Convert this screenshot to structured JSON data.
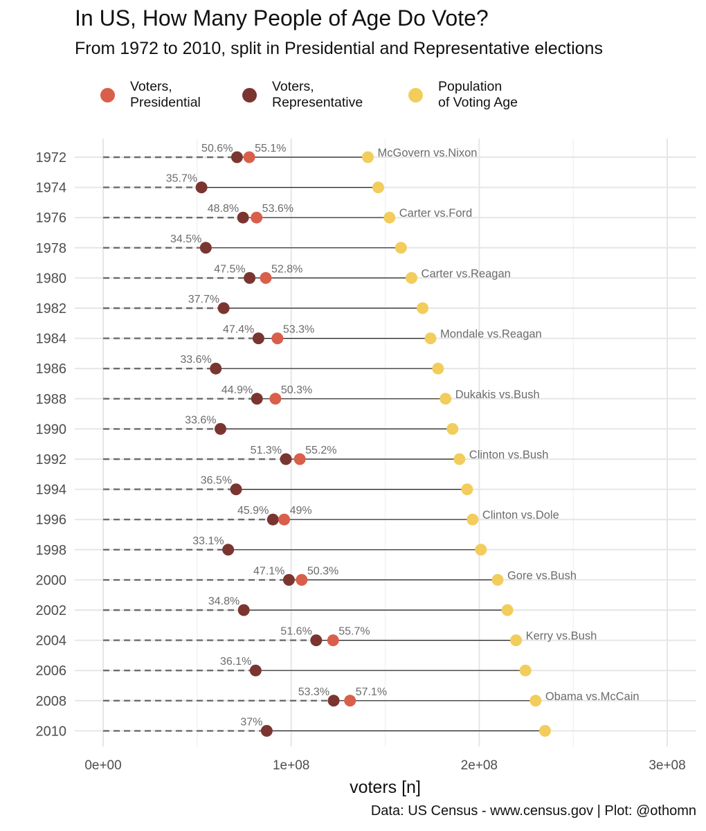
{
  "title": "In US, How Many People of Age Do Vote?",
  "subtitle": "From 1972 to 2010, split in Presidential and Representative elections",
  "caption": "Data: US Census - www.census.gov | Plot: @othomn",
  "legend": [
    {
      "line1": "Voters,",
      "line2": "Presidential",
      "color": "#d95f4b"
    },
    {
      "line1": "Voters,",
      "line2": "Representative",
      "color": "#7b3530"
    },
    {
      "line1": "Population",
      "line2": "of Voting Age",
      "color": "#f2cd5c"
    }
  ],
  "chart_data": {
    "type": "dot-dumbbell",
    "xlabel": "voters [n]",
    "ylabel": "",
    "xlim": [
      0,
      300000000
    ],
    "xticks": [
      {
        "value": 0,
        "label": "0e+00"
      },
      {
        "value": 100000000,
        "label": "1e+08"
      },
      {
        "value": 200000000,
        "label": "2e+08"
      },
      {
        "value": 300000000,
        "label": "3e+08"
      }
    ],
    "grid": true,
    "colors": {
      "presidential": "#d95f4b",
      "representative": "#7b3530",
      "population": "#f2cd5c"
    },
    "rows": [
      {
        "year": "1972",
        "pop": 140800000,
        "rep": 71200000,
        "rep_pct": "50.6%",
        "pres": 77700000,
        "pres_pct": "55.1%",
        "election": "McGovern vs.Nixon"
      },
      {
        "year": "1974",
        "pop": 146300000,
        "rep": 52300000,
        "rep_pct": "35.7%",
        "pres": null,
        "pres_pct": "",
        "election": ""
      },
      {
        "year": "1976",
        "pop": 152300000,
        "rep": 74400000,
        "rep_pct": "48.8%",
        "pres": 81600000,
        "pres_pct": "53.6%",
        "election": "Carter vs.Ford"
      },
      {
        "year": "1978",
        "pop": 158400000,
        "rep": 54600000,
        "rep_pct": "34.5%",
        "pres": null,
        "pres_pct": "",
        "election": ""
      },
      {
        "year": "1980",
        "pop": 164000000,
        "rep": 77900000,
        "rep_pct": "47.5%",
        "pres": 86500000,
        "pres_pct": "52.8%",
        "election": "Carter vs.Reagan"
      },
      {
        "year": "1982",
        "pop": 169900000,
        "rep": 64100000,
        "rep_pct": "37.7%",
        "pres": null,
        "pres_pct": "",
        "election": ""
      },
      {
        "year": "1984",
        "pop": 174100000,
        "rep": 82600000,
        "rep_pct": "47.4%",
        "pres": 92700000,
        "pres_pct": "53.3%",
        "election": "Mondale vs.Reagan"
      },
      {
        "year": "1986",
        "pop": 178100000,
        "rep": 59900000,
        "rep_pct": "33.6%",
        "pres": null,
        "pres_pct": "",
        "election": ""
      },
      {
        "year": "1988",
        "pop": 182100000,
        "rep": 81800000,
        "rep_pct": "44.9%",
        "pres": 91600000,
        "pres_pct": "50.3%",
        "election": "Dukakis vs.Bush"
      },
      {
        "year": "1990",
        "pop": 185800000,
        "rep": 62400000,
        "rep_pct": "33.6%",
        "pres": null,
        "pres_pct": "",
        "election": ""
      },
      {
        "year": "1992",
        "pop": 189500000,
        "rep": 97200000,
        "rep_pct": "51.3%",
        "pres": 104600000,
        "pres_pct": "55.2%",
        "election": "Clinton vs.Bush"
      },
      {
        "year": "1994",
        "pop": 193600000,
        "rep": 70700000,
        "rep_pct": "36.5%",
        "pres": null,
        "pres_pct": "",
        "election": ""
      },
      {
        "year": "1996",
        "pop": 196500000,
        "rep": 90300000,
        "rep_pct": "45.9%",
        "pres": 96300000,
        "pres_pct": "49%",
        "election": "Clinton vs.Dole"
      },
      {
        "year": "1998",
        "pop": 200900000,
        "rep": 66500000,
        "rep_pct": "33.1%",
        "pres": null,
        "pres_pct": "",
        "election": ""
      },
      {
        "year": "2000",
        "pop": 209800000,
        "rep": 98800000,
        "rep_pct": "47.1%",
        "pres": 105600000,
        "pres_pct": "50.3%",
        "election": "Gore vs.Bush"
      },
      {
        "year": "2002",
        "pop": 215000000,
        "rep": 74800000,
        "rep_pct": "34.8%",
        "pres": null,
        "pres_pct": "",
        "election": ""
      },
      {
        "year": "2004",
        "pop": 219600000,
        "rep": 113300000,
        "rep_pct": "51.6%",
        "pres": 122300000,
        "pres_pct": "55.7%",
        "election": "Kerry vs.Bush"
      },
      {
        "year": "2006",
        "pop": 224600000,
        "rep": 81100000,
        "rep_pct": "36.1%",
        "pres": null,
        "pres_pct": "",
        "election": ""
      },
      {
        "year": "2008",
        "pop": 230000000,
        "rep": 122600000,
        "rep_pct": "53.3%",
        "pres": 131300000,
        "pres_pct": "57.1%",
        "election": "Obama vs.McCain"
      },
      {
        "year": "2010",
        "pop": 235000000,
        "rep": 87000000,
        "rep_pct": "37%",
        "pres": null,
        "pres_pct": "",
        "election": ""
      }
    ]
  }
}
